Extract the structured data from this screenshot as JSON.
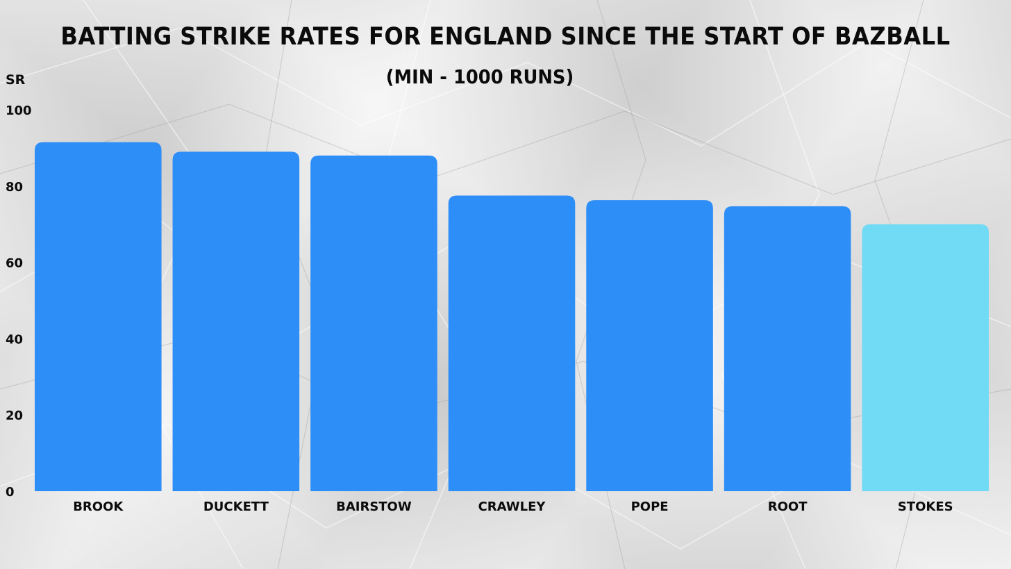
{
  "chart_data": {
    "type": "bar",
    "title": "BATTING STRIKE RATES FOR ENGLAND SINCE THE START OF BAZBALL",
    "subtitle": "(MIN - 1000 RUNS)",
    "ylabel": "SR",
    "xlabel": "",
    "ylim": [
      0,
      100
    ],
    "yticks": [
      "0",
      "20",
      "40",
      "60",
      "80",
      "100"
    ],
    "grid": false,
    "categories": [
      "BROOK",
      "DUCKETT",
      "BAIRSTOW",
      "CRAWLEY",
      "POPE",
      "ROOT",
      "STOKES"
    ],
    "values": [
      91.5,
      89,
      88,
      77.5,
      76.3,
      74.7,
      70
    ],
    "colors": [
      "#2e8ef7",
      "#2e8ef7",
      "#2e8ef7",
      "#2e8ef7",
      "#2e8ef7",
      "#2e8ef7",
      "#71dbf5"
    ]
  }
}
